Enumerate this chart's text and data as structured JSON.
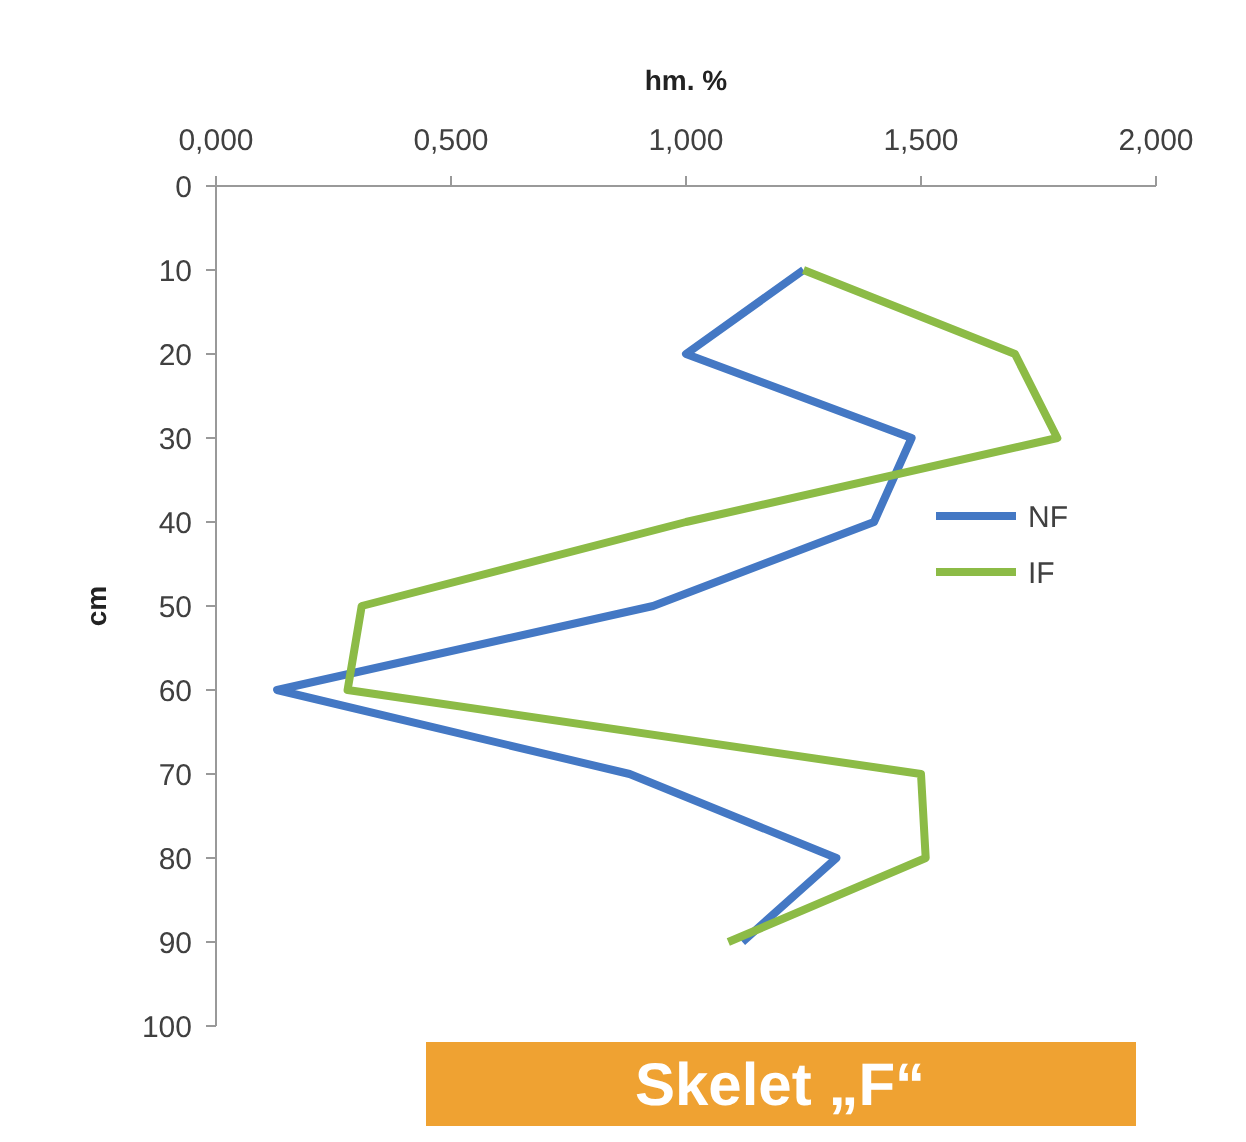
{
  "chart_data": {
    "type": "line",
    "orientation": "horizontal",
    "xlabel": "hm. %",
    "ylabel": "cm",
    "x": [
      10,
      20,
      30,
      40,
      50,
      60,
      70,
      80,
      90
    ],
    "series": [
      {
        "name": "NF",
        "color": "#4478c4",
        "values": [
          1.25,
          1.0,
          1.48,
          1.4,
          0.93,
          0.13,
          0.88,
          1.32,
          1.12
        ]
      },
      {
        "name": "IF",
        "color": "#8cbb46",
        "values": [
          1.25,
          1.7,
          1.79,
          1.0,
          0.31,
          0.28,
          1.5,
          1.51,
          1.09
        ]
      }
    ],
    "xlim": [
      0,
      2
    ],
    "xticks": [
      {
        "value": 0,
        "label": "0,000"
      },
      {
        "value": 0.5,
        "label": "0,500"
      },
      {
        "value": 1,
        "label": "1,000"
      },
      {
        "value": 1.5,
        "label": "1,500"
      },
      {
        "value": 2,
        "label": "2,000"
      }
    ],
    "ylim": [
      100,
      0
    ],
    "yticks": [
      0,
      10,
      20,
      30,
      40,
      50,
      60,
      70,
      80,
      90,
      100
    ],
    "legend": "right",
    "grid": false,
    "marker": "none",
    "line_style": "solid",
    "annotations": [
      "Skelet „F“"
    ]
  }
}
